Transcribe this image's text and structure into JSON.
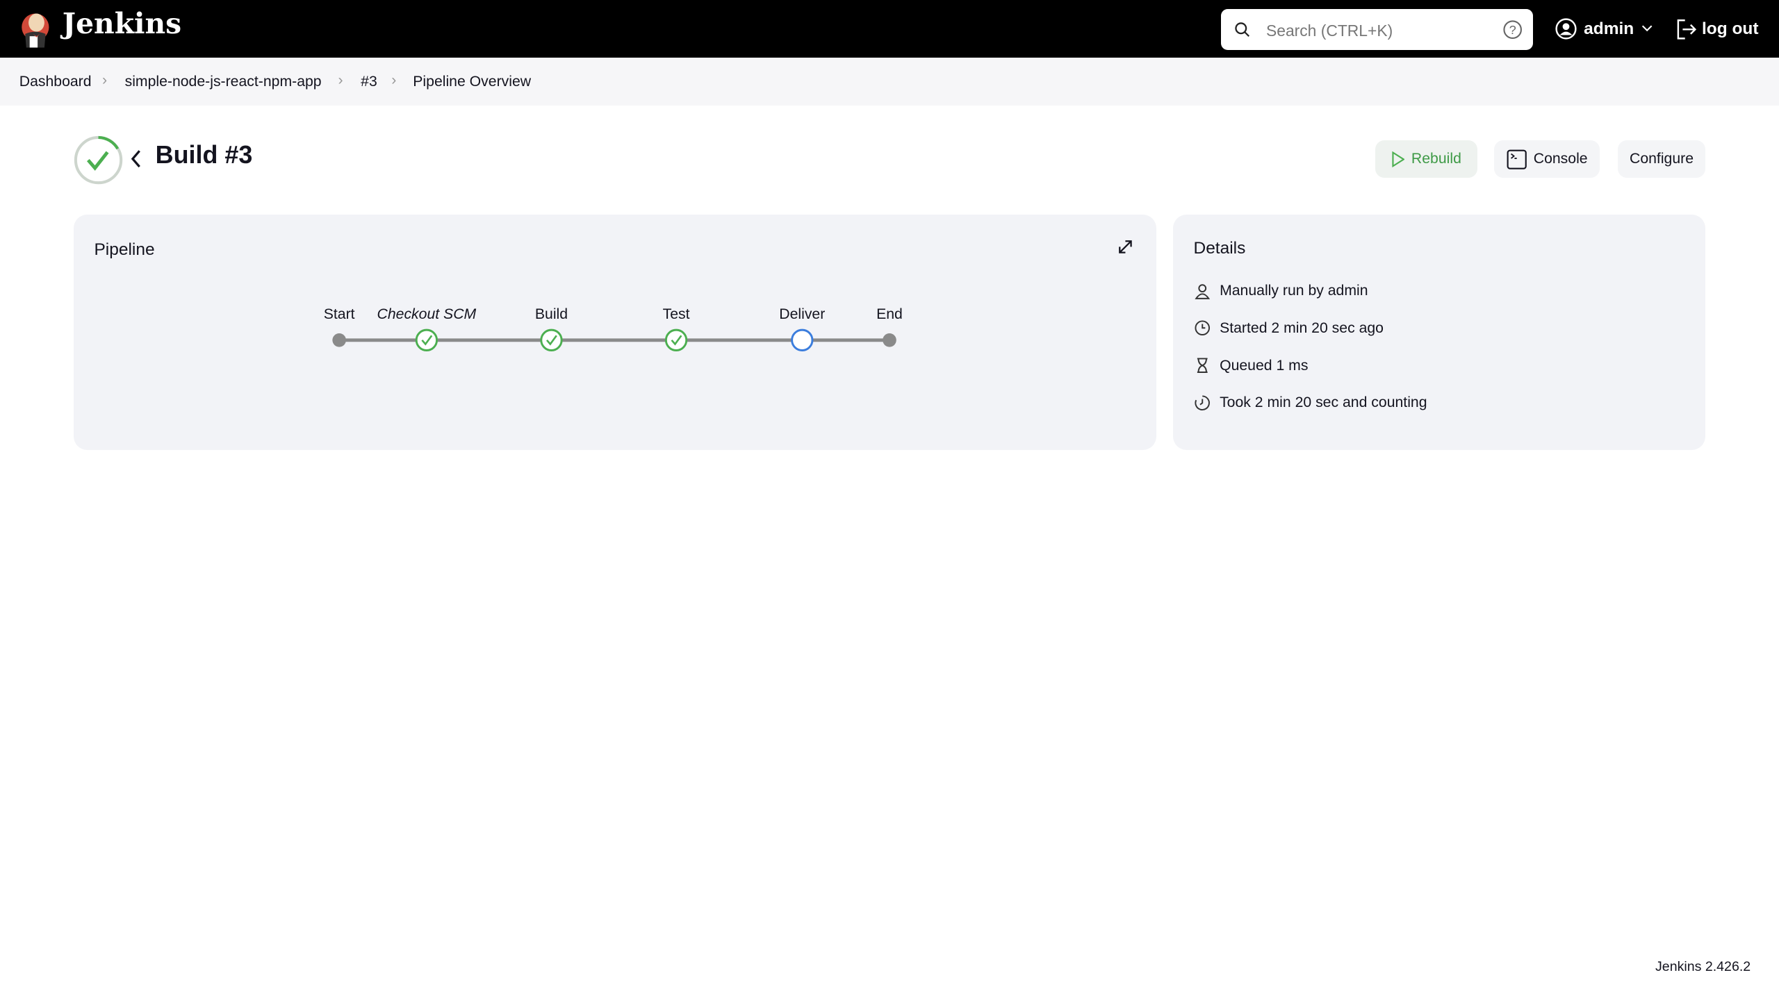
{
  "header": {
    "brand": "Jenkins",
    "search_placeholder": "Search (CTRL+K)",
    "user": "admin",
    "logout": "log out"
  },
  "breadcrumb": [
    "Dashboard",
    "simple-node-js-react-npm-app",
    "#3",
    "Pipeline Overview"
  ],
  "build": {
    "title": "Build #3",
    "status": "success"
  },
  "actions": {
    "rebuild": "Rebuild",
    "console": "Console",
    "configure": "Configure"
  },
  "pipeline": {
    "title": "Pipeline",
    "stages": [
      {
        "name": "Start",
        "status": "start"
      },
      {
        "name": "Checkout SCM",
        "status": "success"
      },
      {
        "name": "Build",
        "status": "success"
      },
      {
        "name": "Test",
        "status": "success"
      },
      {
        "name": "Deliver",
        "status": "running"
      },
      {
        "name": "End",
        "status": "end"
      }
    ]
  },
  "details": {
    "title": "Details",
    "rows": [
      "Manually run by admin",
      "Started 2 min 20 sec ago",
      "Queued 1 ms",
      "Took 2 min 20 sec and counting"
    ]
  },
  "footer": {
    "version": "Jenkins 2.426.2"
  },
  "colors": {
    "success": "#4caf50",
    "running": "#3b7ddd",
    "node": "#8a8a8a"
  }
}
